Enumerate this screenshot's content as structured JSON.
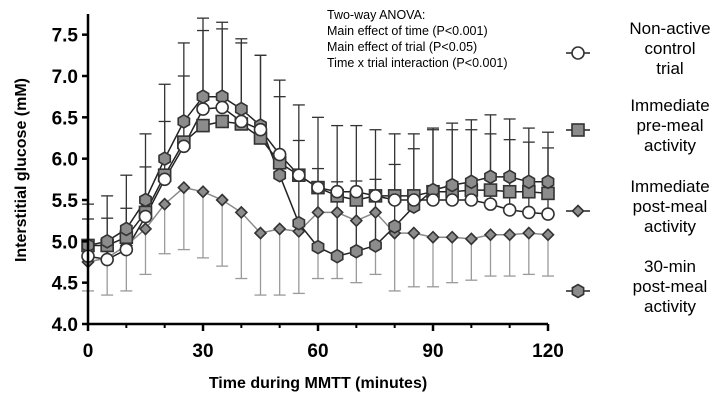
{
  "chart_data": {
    "type": "line",
    "xlabel": "Time during MMTT (minutes)",
    "ylabel": "Interstitial glucose (mM)",
    "xlim": [
      0,
      120
    ],
    "ylim": [
      4.0,
      7.75
    ],
    "xticks": [
      "0",
      "30",
      "60",
      "90",
      "120"
    ],
    "yticks": [
      "4.0",
      "4.5",
      "5.0",
      "5.5",
      "6.0",
      "6.5",
      "7.0",
      "7.5"
    ],
    "annotation": [
      "Two-way ANOVA:",
      "Main effect of time (P<0.001)",
      "Main effect of trial (P<0.05)",
      "Time x trial interaction (P<0.001)"
    ],
    "legend_position": "right",
    "x": [
      0,
      5,
      10,
      15,
      20,
      25,
      30,
      35,
      40,
      45,
      50,
      55,
      60,
      65,
      70,
      75,
      80,
      85,
      90,
      95,
      100,
      105,
      110,
      115,
      120
    ],
    "series": [
      {
        "name": "Non-active control trial",
        "legend_lines": [
          "Non-active",
          "control",
          "trial"
        ],
        "marker": "circle",
        "fill": "#ffffff",
        "values": [
          4.82,
          4.78,
          4.9,
          5.3,
          5.75,
          6.15,
          6.6,
          6.62,
          6.45,
          6.35,
          6.05,
          5.8,
          5.65,
          5.6,
          5.6,
          5.55,
          5.5,
          5.5,
          5.5,
          5.5,
          5.5,
          5.45,
          5.38,
          5.35,
          5.33
        ],
        "error": [
          0.45,
          0.5,
          0.5,
          0.6,
          0.7,
          0.85,
          0.95,
          0.95,
          0.95,
          0.9,
          0.9,
          0.85,
          0.85,
          0.8,
          0.8,
          0.8,
          0.8,
          0.8,
          0.85,
          0.85,
          0.85,
          0.85,
          0.85,
          0.85,
          0.8
        ]
      },
      {
        "name": "Immediate pre-meal activity",
        "legend_lines": [
          "Immediate",
          "pre-meal",
          "activity"
        ],
        "marker": "square",
        "fill": "#8c8c8c",
        "values": [
          4.95,
          4.95,
          5.05,
          5.35,
          5.8,
          6.2,
          6.4,
          6.45,
          6.42,
          6.25,
          5.95,
          5.8,
          5.65,
          5.55,
          5.5,
          5.55,
          5.55,
          5.55,
          5.6,
          5.6,
          5.62,
          5.62,
          5.6,
          5.6,
          5.58
        ]
      },
      {
        "name": "Immediate post-meal activity",
        "legend_lines": [
          "Immediate",
          "post-meal",
          "activity"
        ],
        "marker": "diamond",
        "fill": "#8c8c8c",
        "values": [
          4.75,
          4.8,
          4.95,
          5.15,
          5.45,
          5.65,
          5.6,
          5.5,
          5.35,
          5.1,
          5.15,
          5.12,
          5.35,
          5.35,
          5.25,
          5.35,
          5.1,
          5.1,
          5.05,
          5.05,
          5.03,
          5.08,
          5.08,
          5.1,
          5.08
        ],
        "error": [
          0.35,
          0.45,
          0.55,
          0.55,
          0.6,
          0.75,
          0.8,
          0.8,
          0.8,
          0.75,
          0.8,
          0.75,
          0.8,
          0.8,
          0.75,
          0.75,
          0.7,
          0.65,
          0.6,
          0.55,
          0.5,
          0.5,
          0.5,
          0.5,
          0.5
        ]
      },
      {
        "name": "30-min post-meal activity",
        "legend_lines": [
          "30-min",
          "post-meal",
          "activity"
        ],
        "marker": "hexagon",
        "fill": "#8c8c8c",
        "values": [
          4.95,
          5.0,
          5.15,
          5.5,
          6.0,
          6.45,
          6.75,
          6.75,
          6.6,
          6.4,
          5.8,
          5.22,
          4.93,
          4.82,
          4.88,
          4.95,
          5.18,
          5.42,
          5.62,
          5.68,
          5.72,
          5.78,
          5.78,
          5.72,
          5.72
        ],
        "error": [
          0.5,
          0.55,
          0.65,
          0.8,
          0.9,
          0.95,
          0.95,
          0.9,
          0.85,
          0.85,
          0.95,
          1.0,
          0.95,
          0.9,
          0.85,
          0.8,
          0.75,
          0.7,
          0.75,
          0.75,
          0.75,
          0.75,
          0.7,
          0.65,
          0.6
        ]
      }
    ]
  }
}
